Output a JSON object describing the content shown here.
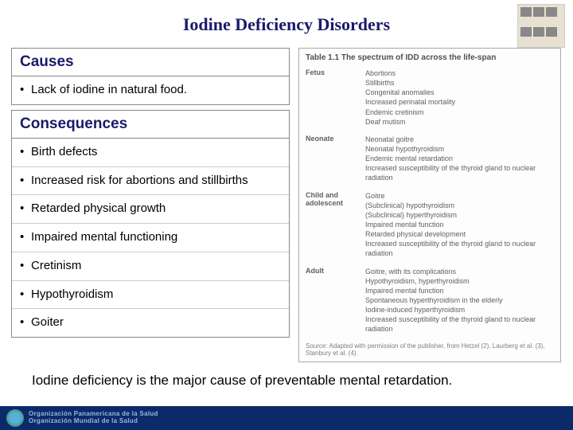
{
  "title": "Iodine Deficiency Disorders",
  "causes": {
    "header": "Causes",
    "items": [
      "Lack of iodine in natural food."
    ]
  },
  "consequences": {
    "header": "Consequences",
    "items": [
      "Birth defects",
      "Increased risk for abortions and stillbirths",
      "Retarded physical growth",
      "Impaired mental functioning",
      " Cretinism",
      "Hypothyroidism",
      "Goiter"
    ]
  },
  "table": {
    "title": "Table 1.1   The spectrum of IDD across the life-span",
    "groups": [
      {
        "stage": "Fetus",
        "effects": [
          "Abortions",
          "Stillbirths",
          "Congenital anomalies",
          "Increased perinatal mortality",
          "Endemic cretinism",
          "Deaf mutism"
        ]
      },
      {
        "stage": "Neonate",
        "effects": [
          "Neonatal goitre",
          "Neonatal hypothyroidism",
          "Endemic mental retardation",
          "Increased susceptibility of the thyroid gland to nuclear radiation"
        ]
      },
      {
        "stage": "Child and adolescent",
        "effects": [
          "Goitre",
          "(Subclinical) hypothyroidism",
          "(Subclinical) hyperthyroidism",
          "Impaired mental function",
          "Retarded physical development",
          "Increased susceptibility of the thyroid gland to nuclear radiation"
        ]
      },
      {
        "stage": "Adult",
        "effects": [
          "Goitre, with its complications",
          "Hypothyroidism, hyperthyroidism",
          "Impaired mental function",
          "Spontaneous hyperthyroidism in the elderly",
          "Iodine-induced hyperthyroidism",
          "Increased susceptibility of the thyroid gland to nuclear radiation"
        ]
      }
    ],
    "source": "Source: Adapted with permission of the publisher, from Hetzel (2), Laurberg et al. (3), Stanbury et al. (4)."
  },
  "bottom": "Iodine deficiency is the major cause of preventable mental retardation.",
  "footer": {
    "line1": "Organización Panamericana de la Salud",
    "line2": "Organización Mundial de la Salud"
  },
  "colors": {
    "title": "#1a1a6a",
    "footer_bg": "#0a2a6a",
    "footer_text": "#9ab8e0"
  }
}
